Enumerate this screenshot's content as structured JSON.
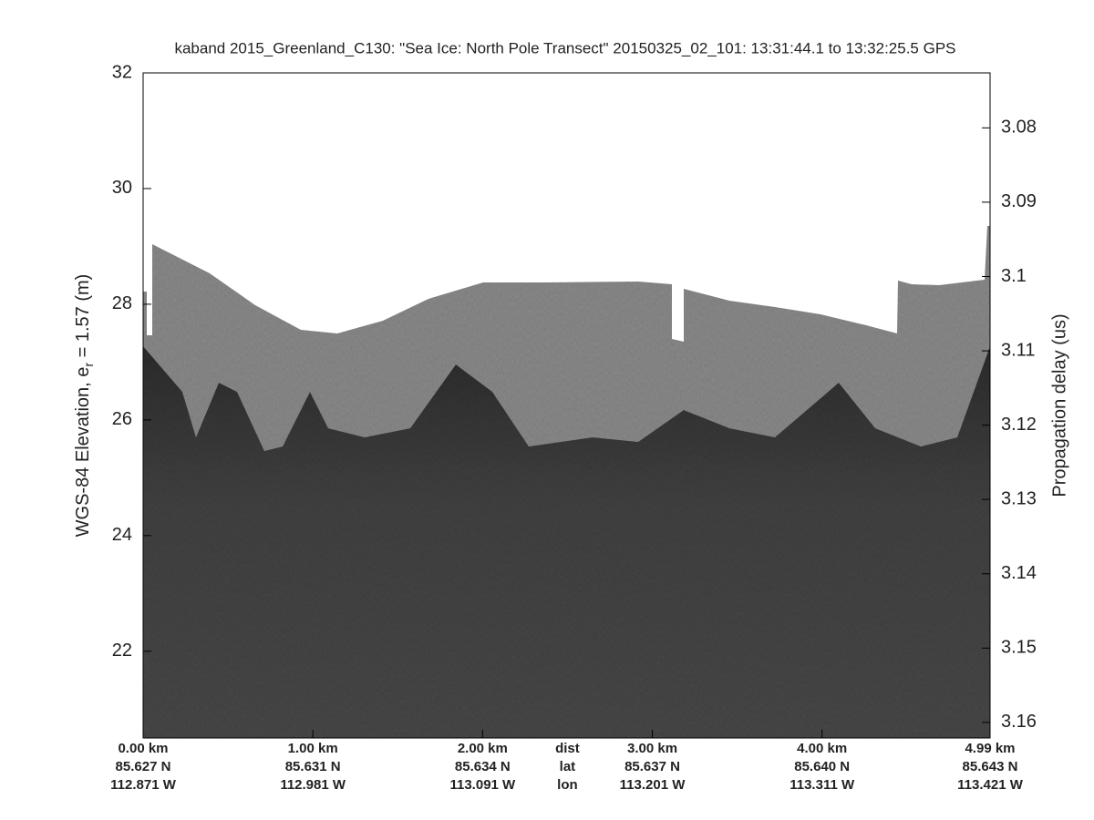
{
  "chart_data": {
    "type": "echogram",
    "title": "kaband 2015_Greenland_C130: \"Sea Ice: North Pole Transect\"  20150325_02_101: 13:31:44.1 to 13:32:25.5 GPS",
    "ylabel": "WGS-84 Elevation, e",
    "ylabel_sub": "r",
    "ylabel_rest": " = 1.57 (m)",
    "y2label": "Propagation delay (us)",
    "xlim": [
      0,
      4.99
    ],
    "xticks": [
      {
        "value": 0,
        "label": "0.00 km"
      },
      {
        "value": 1,
        "label": "1.00 km"
      },
      {
        "value": 2,
        "label": "2.00 km"
      },
      {
        "value": 3,
        "label": "3.00 km"
      },
      {
        "value": 4,
        "label": "4.00 km"
      },
      {
        "value": 4.99,
        "label": "4.99 km"
      }
    ],
    "xtick_lat": [
      "85.627 N",
      "85.631 N",
      "85.634 N",
      "85.637 N",
      "85.640 N",
      "85.643 N"
    ],
    "xtick_lon": [
      "112.871 W",
      "112.981 W",
      "113.091 W",
      "113.201 W",
      "113.311 W",
      "113.421 W"
    ],
    "xtick_row_names": [
      "dist",
      "lat",
      "lon"
    ],
    "ylim": [
      20.5,
      32
    ],
    "yticks": [
      22,
      24,
      26,
      28,
      30,
      32
    ],
    "y2lim": [
      3.1621,
      3.0726
    ],
    "y2ticks": [
      3.08,
      3.09,
      3.1,
      3.11,
      3.12,
      3.13,
      3.14,
      3.15,
      3.16
    ]
  }
}
